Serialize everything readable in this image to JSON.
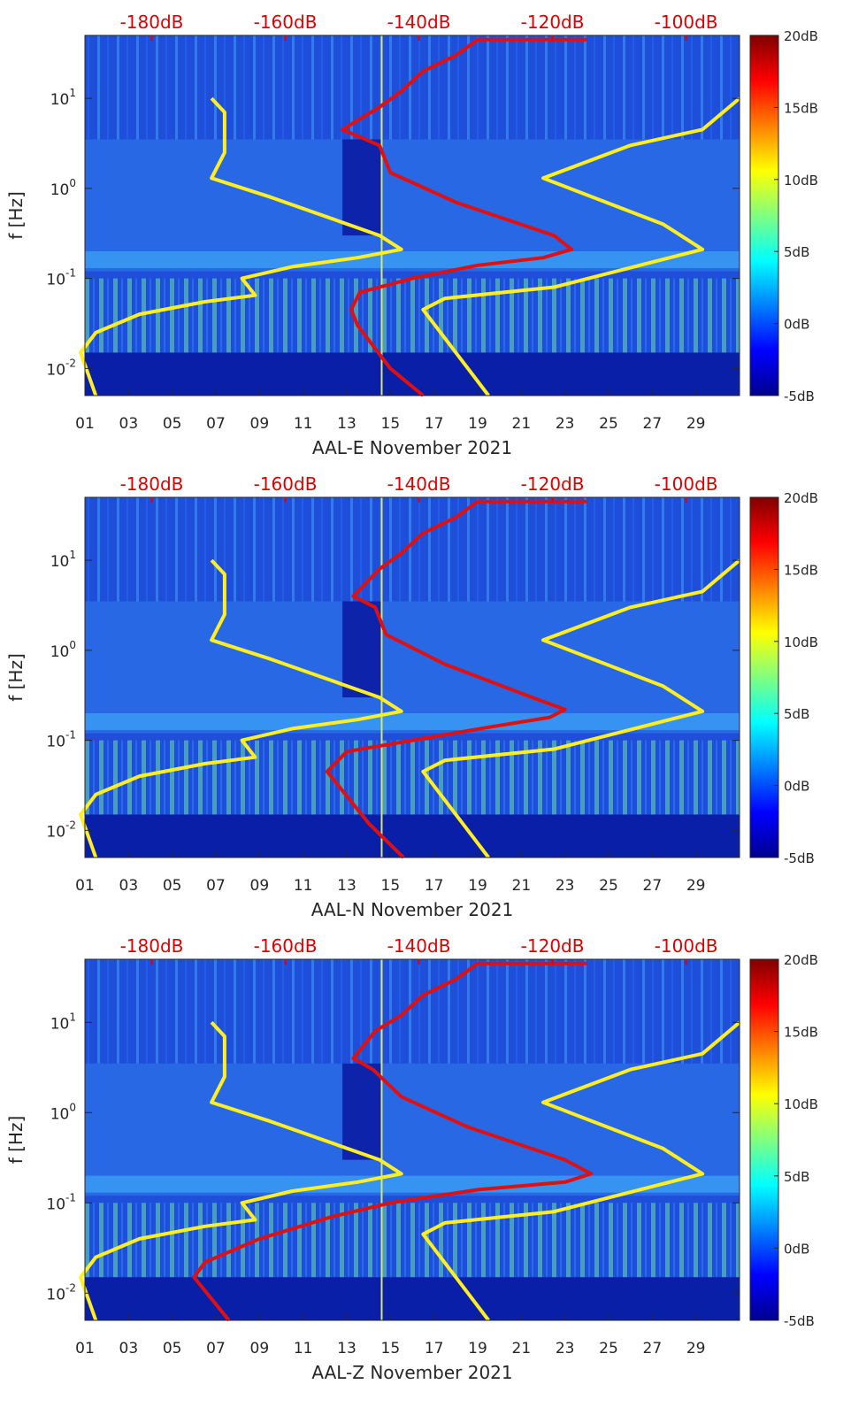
{
  "figure": {
    "type": "spectrogram",
    "y_label": "f [Hz]",
    "x_ticks": [
      "01",
      "03",
      "05",
      "07",
      "09",
      "11",
      "13",
      "15",
      "17",
      "19",
      "21",
      "23",
      "25",
      "27",
      "29"
    ],
    "y_ticks": [
      {
        "label": "10",
        "exp": "1"
      },
      {
        "label": "10",
        "exp": "0"
      },
      {
        "label": "10",
        "exp": "-1"
      },
      {
        "label": "10",
        "exp": "-2"
      }
    ],
    "top_ticks": [
      "-180dB",
      "-160dB",
      "-140dB",
      "-120dB",
      "-100dB"
    ],
    "colorbar_ticks": [
      "20dB",
      "15dB",
      "10dB",
      "5dB",
      "0dB",
      "-5dB"
    ],
    "colors": {
      "yellow_curve": "#ffee22",
      "red_curve": "#e01010",
      "top_axis_text": "#e00000"
    }
  },
  "chart_data": [
    {
      "type": "heatmap",
      "title": "",
      "xlabel": "AAL-E November 2021",
      "ylabel": "f [Hz]",
      "x_range_days": [
        1,
        31
      ],
      "y_range_hz": [
        0.005,
        50
      ],
      "color_range_db": [
        -5,
        20
      ],
      "top_axis_db_range": [
        -190,
        -92
      ],
      "overlays": [
        {
          "name": "yellow-model-curves",
          "color": "#ffee22",
          "points_day_hz": [
            [
              1.5,
              0.005
            ],
            [
              0.8,
              0.015
            ],
            [
              1.5,
              0.025
            ],
            [
              3.5,
              0.04
            ],
            [
              6.5,
              0.055
            ],
            [
              8.8,
              0.065
            ],
            [
              8.2,
              0.1
            ],
            [
              10.5,
              0.135
            ],
            [
              13.5,
              0.17
            ],
            [
              15.5,
              0.21
            ],
            [
              14.5,
              0.3
            ],
            [
              9.5,
              0.8
            ],
            [
              6.8,
              1.3
            ],
            [
              7.4,
              2.5
            ],
            [
              7.4,
              7
            ],
            [
              6.8,
              10
            ]
          ]
        },
        {
          "name": "yellow-model-curves-high",
          "color": "#ffee22",
          "points_day_hz": [
            [
              19.5,
              0.005
            ],
            [
              16.5,
              0.045
            ],
            [
              17.5,
              0.06
            ],
            [
              22.5,
              0.08
            ],
            [
              29.3,
              0.21
            ],
            [
              27.5,
              0.4
            ],
            [
              22,
              1.3
            ],
            [
              26,
              3
            ],
            [
              29.3,
              4.5
            ],
            [
              31,
              10
            ]
          ]
        },
        {
          "name": "red-median-noise",
          "color": "#e01010",
          "points_day_hz": [
            [
              16.5,
              0.005
            ],
            [
              15,
              0.01
            ],
            [
              13.5,
              0.03
            ],
            [
              13.2,
              0.045
            ],
            [
              13.6,
              0.07
            ],
            [
              16,
              0.1
            ],
            [
              19,
              0.14
            ],
            [
              22,
              0.17
            ],
            [
              23.3,
              0.21
            ],
            [
              22.5,
              0.3
            ],
            [
              18,
              0.7
            ],
            [
              15,
              1.5
            ],
            [
              14.5,
              3
            ],
            [
              12.8,
              4.5
            ],
            [
              14.5,
              8
            ],
            [
              15.5,
              12
            ],
            [
              16.5,
              20
            ],
            [
              18,
              30
            ],
            [
              19,
              45
            ],
            [
              24,
              45
            ]
          ]
        }
      ]
    },
    {
      "type": "heatmap",
      "title": "",
      "xlabel": "AAL-N November 2021",
      "ylabel": "f [Hz]",
      "x_range_days": [
        1,
        31
      ],
      "y_range_hz": [
        0.005,
        50
      ],
      "color_range_db": [
        -5,
        20
      ],
      "top_axis_db_range": [
        -190,
        -92
      ],
      "overlays": [
        {
          "name": "yellow-model-curves",
          "color": "#ffee22",
          "points_day_hz": [
            [
              1.5,
              0.005
            ],
            [
              0.8,
              0.015
            ],
            [
              1.5,
              0.025
            ],
            [
              3.5,
              0.04
            ],
            [
              6.5,
              0.055
            ],
            [
              8.8,
              0.065
            ],
            [
              8.2,
              0.1
            ],
            [
              10.5,
              0.135
            ],
            [
              13.5,
              0.17
            ],
            [
              15.5,
              0.21
            ],
            [
              14.5,
              0.3
            ],
            [
              9.5,
              0.8
            ],
            [
              6.8,
              1.3
            ],
            [
              7.4,
              2.5
            ],
            [
              7.4,
              7
            ],
            [
              6.8,
              10
            ]
          ]
        },
        {
          "name": "yellow-model-curves-high",
          "color": "#ffee22",
          "points_day_hz": [
            [
              19.5,
              0.005
            ],
            [
              16.5,
              0.045
            ],
            [
              17.5,
              0.06
            ],
            [
              22.5,
              0.08
            ],
            [
              29.3,
              0.21
            ],
            [
              27.5,
              0.4
            ],
            [
              22,
              1.3
            ],
            [
              26,
              3
            ],
            [
              29.3,
              4.5
            ],
            [
              31,
              10
            ]
          ]
        },
        {
          "name": "red-median-noise",
          "color": "#e01010",
          "points_day_hz": [
            [
              15.6,
              0.005
            ],
            [
              14,
              0.012
            ],
            [
              12.1,
              0.045
            ],
            [
              13,
              0.075
            ],
            [
              16,
              0.1
            ],
            [
              19.5,
              0.14
            ],
            [
              22.3,
              0.18
            ],
            [
              23,
              0.22
            ],
            [
              21.5,
              0.3
            ],
            [
              17.5,
              0.7
            ],
            [
              14.8,
              1.5
            ],
            [
              14.3,
              3
            ],
            [
              13.3,
              4
            ],
            [
              14.5,
              8
            ],
            [
              15.5,
              12
            ],
            [
              16.5,
              20
            ],
            [
              18,
              30
            ],
            [
              19,
              45
            ],
            [
              24,
              45
            ]
          ]
        }
      ]
    },
    {
      "type": "heatmap",
      "title": "",
      "xlabel": "AAL-Z November 2021",
      "ylabel": "f [Hz]",
      "x_range_days": [
        1,
        31
      ],
      "y_range_hz": [
        0.005,
        50
      ],
      "color_range_db": [
        -5,
        20
      ],
      "top_axis_db_range": [
        -190,
        -92
      ],
      "overlays": [
        {
          "name": "yellow-model-curves",
          "color": "#ffee22",
          "points_day_hz": [
            [
              1.5,
              0.005
            ],
            [
              0.8,
              0.015
            ],
            [
              1.5,
              0.025
            ],
            [
              3.5,
              0.04
            ],
            [
              6.5,
              0.055
            ],
            [
              8.8,
              0.065
            ],
            [
              8.2,
              0.1
            ],
            [
              10.5,
              0.135
            ],
            [
              13.5,
              0.17
            ],
            [
              15.5,
              0.21
            ],
            [
              14.5,
              0.3
            ],
            [
              9.5,
              0.8
            ],
            [
              6.8,
              1.3
            ],
            [
              7.4,
              2.5
            ],
            [
              7.4,
              7
            ],
            [
              6.8,
              10
            ]
          ]
        },
        {
          "name": "yellow-model-curves-high",
          "color": "#ffee22",
          "points_day_hz": [
            [
              19.5,
              0.005
            ],
            [
              16.5,
              0.045
            ],
            [
              17.5,
              0.06
            ],
            [
              22.5,
              0.08
            ],
            [
              29.3,
              0.21
            ],
            [
              27.5,
              0.4
            ],
            [
              22,
              1.3
            ],
            [
              26,
              3
            ],
            [
              29.3,
              4.5
            ],
            [
              31,
              10
            ]
          ]
        },
        {
          "name": "red-median-noise",
          "color": "#e01010",
          "points_day_hz": [
            [
              7.6,
              0.005
            ],
            [
              6,
              0.015
            ],
            [
              6.5,
              0.022
            ],
            [
              9,
              0.04
            ],
            [
              12.3,
              0.07
            ],
            [
              15,
              0.1
            ],
            [
              19,
              0.14
            ],
            [
              23,
              0.17
            ],
            [
              24.2,
              0.21
            ],
            [
              23,
              0.3
            ],
            [
              18.5,
              0.7
            ],
            [
              15.5,
              1.5
            ],
            [
              14.2,
              3
            ],
            [
              13.3,
              4
            ],
            [
              14.3,
              8
            ],
            [
              15.5,
              12
            ],
            [
              16.5,
              20
            ],
            [
              18,
              30
            ],
            [
              19,
              45
            ],
            [
              24,
              45
            ]
          ]
        }
      ]
    }
  ]
}
